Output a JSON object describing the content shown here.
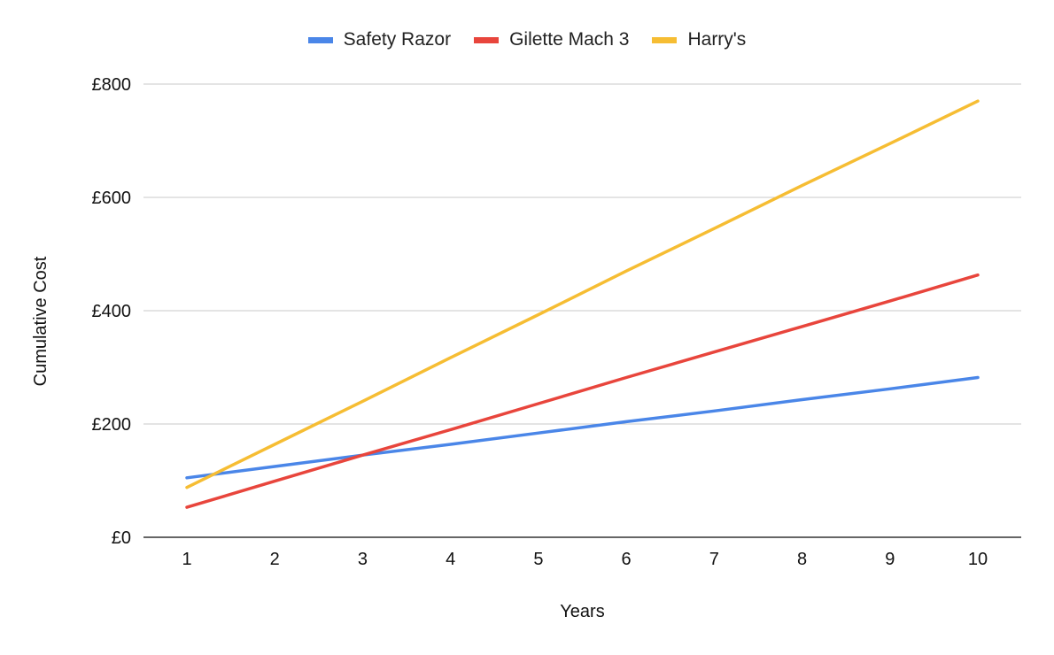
{
  "chart_data": {
    "type": "line",
    "title": "",
    "xlabel": "Years",
    "ylabel": "Cumulative Cost",
    "x": [
      1,
      2,
      3,
      4,
      5,
      6,
      7,
      8,
      9,
      10
    ],
    "ylim": [
      0,
      800
    ],
    "yticks": [
      0,
      200,
      400,
      600,
      800
    ],
    "ytick_labels": [
      "£0",
      "£200",
      "£400",
      "£600",
      "£800"
    ],
    "grid": true,
    "legend_position": "top",
    "series": [
      {
        "name": "Safety Razor",
        "color": "#4a86e8",
        "values": [
          105,
          125,
          145,
          164,
          184,
          204,
          223,
          243,
          262,
          282
        ]
      },
      {
        "name": "Gilette Mach 3",
        "color": "#e8453c",
        "values": [
          53,
          99,
          145,
          190,
          236,
          282,
          327,
          372,
          417,
          463
        ]
      },
      {
        "name": "Harry's",
        "color": "#f6bd33",
        "values": [
          88,
          164,
          240,
          317,
          393,
          470,
          545,
          621,
          695,
          770
        ]
      }
    ]
  }
}
